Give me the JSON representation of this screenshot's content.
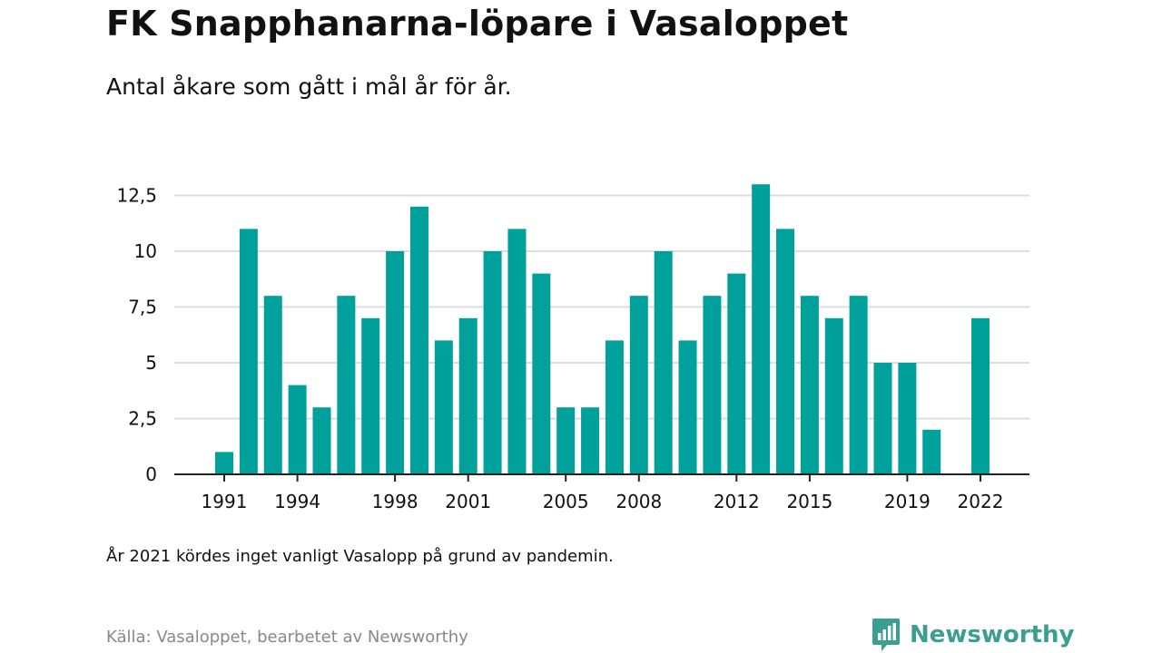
{
  "header": {
    "title": "FK Snapphanarna-löpare i Vasaloppet",
    "subtitle": "Antal åkare som gått i mål år för år."
  },
  "footer": {
    "note": "År 2021 kördes inget vanligt Vasalopp på grund av pandemin.",
    "source": "Källa: Vasaloppet, bearbetet av Newsworthy",
    "brand": "Newsworthy",
    "brand_icon": "bar-chart-icon"
  },
  "colors": {
    "bar": "#00a19a",
    "grid": "#dddddd",
    "axis": "#222222",
    "text": "#111111",
    "muted": "#888888",
    "brand": "#3a9e93"
  },
  "chart_data": {
    "type": "bar",
    "categories": [
      "1991",
      "1992",
      "1993",
      "1994",
      "1995",
      "1996",
      "1997",
      "1998",
      "1999",
      "2000",
      "2001",
      "2002",
      "2003",
      "2004",
      "2005",
      "2006",
      "2007",
      "2008",
      "2009",
      "2010",
      "2011",
      "2012",
      "2013",
      "2014",
      "2015",
      "2016",
      "2017",
      "2018",
      "2019",
      "2020",
      "2021",
      "2022"
    ],
    "values": [
      1,
      11,
      8,
      4,
      3,
      8,
      7,
      10,
      12,
      6,
      7,
      10,
      11,
      9,
      3,
      3,
      6,
      8,
      10,
      6,
      8,
      9,
      13,
      11,
      8,
      7,
      8,
      5,
      5,
      2,
      0,
      7
    ],
    "x_tick_labels": [
      "1991",
      "1994",
      "1998",
      "2001",
      "2005",
      "2008",
      "2012",
      "2015",
      "2019",
      "2022"
    ],
    "y_ticks": [
      0,
      2.5,
      5,
      7.5,
      10,
      12.5
    ],
    "y_tick_labels": [
      "0",
      "2,5",
      "5",
      "7,5",
      "10",
      "12,5"
    ],
    "ylim": [
      0,
      13
    ],
    "grid": true,
    "legend": "none"
  }
}
